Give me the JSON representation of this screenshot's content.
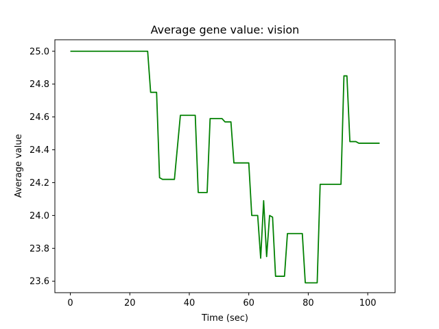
{
  "chart_data": {
    "type": "line",
    "title": "Average gene value: vision",
    "xlabel": "Time (sec)",
    "ylabel": "Average value",
    "xlim": [
      -5.2,
      109.2
    ],
    "ylim": [
      23.53,
      25.07
    ],
    "xticks": [
      0,
      20,
      40,
      60,
      80,
      100
    ],
    "yticks": [
      23.6,
      23.8,
      24.0,
      24.2,
      24.4,
      24.6,
      24.8,
      25.0
    ],
    "xtick_labels": [
      "0",
      "20",
      "40",
      "60",
      "80",
      "100"
    ],
    "ytick_labels": [
      "23.6",
      "23.8",
      "24.0",
      "24.2",
      "24.4",
      "24.6",
      "24.8",
      "25.0"
    ],
    "grid": false,
    "color": "#008000",
    "series": [
      {
        "x": [
          0,
          26,
          27,
          29,
          30,
          31,
          35,
          37,
          42,
          43,
          46,
          47,
          51,
          52,
          54,
          55,
          60,
          61,
          63,
          64,
          65,
          66,
          67,
          68,
          69,
          72,
          73,
          78,
          79,
          83,
          84,
          91,
          92,
          93,
          94,
          96,
          97,
          104
        ],
        "y": [
          25.0,
          25.0,
          24.75,
          24.75,
          24.23,
          24.22,
          24.22,
          24.61,
          24.61,
          24.14,
          24.14,
          24.59,
          24.59,
          24.57,
          24.57,
          24.32,
          24.32,
          24.0,
          24.0,
          23.74,
          24.09,
          23.75,
          24.0,
          23.99,
          23.63,
          23.63,
          23.89,
          23.89,
          23.59,
          23.59,
          24.19,
          24.19,
          24.85,
          24.85,
          24.45,
          24.45,
          24.44,
          24.44
        ]
      }
    ]
  }
}
